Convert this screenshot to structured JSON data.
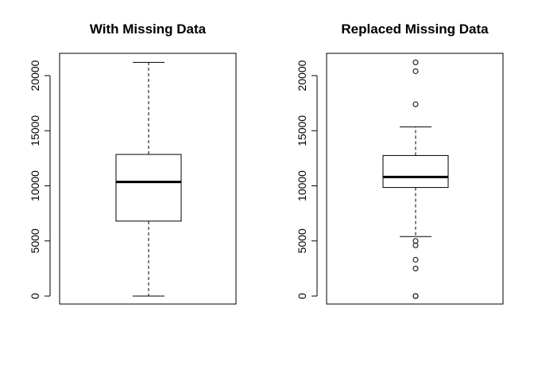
{
  "chart_data": [
    {
      "type": "box",
      "title": "With Missing Data",
      "xlabel": "",
      "ylabel": "",
      "ylim": [
        0,
        21300
      ],
      "yticks": [
        0,
        5000,
        10000,
        15000,
        20000
      ],
      "ytick_labels": [
        "0",
        "5000",
        "10000",
        "15000",
        "20000"
      ],
      "box": {
        "whisker_low": 0,
        "q1": 6800,
        "median": 10350,
        "q3": 12850,
        "whisker_high": 21200
      },
      "outliers": []
    },
    {
      "type": "box",
      "title": "Replaced Missing Data",
      "xlabel": "",
      "ylabel": "",
      "ylim": [
        0,
        21300
      ],
      "yticks": [
        0,
        5000,
        10000,
        15000,
        20000
      ],
      "ytick_labels": [
        "0",
        "5000",
        "10000",
        "15000",
        "20000"
      ],
      "box": {
        "whisker_low": 5400,
        "q1": 9850,
        "median": 10800,
        "q3": 12750,
        "whisker_high": 15350
      },
      "outliers": [
        0,
        0,
        2500,
        3300,
        4600,
        5000,
        17400,
        20400,
        21200
      ]
    }
  ]
}
